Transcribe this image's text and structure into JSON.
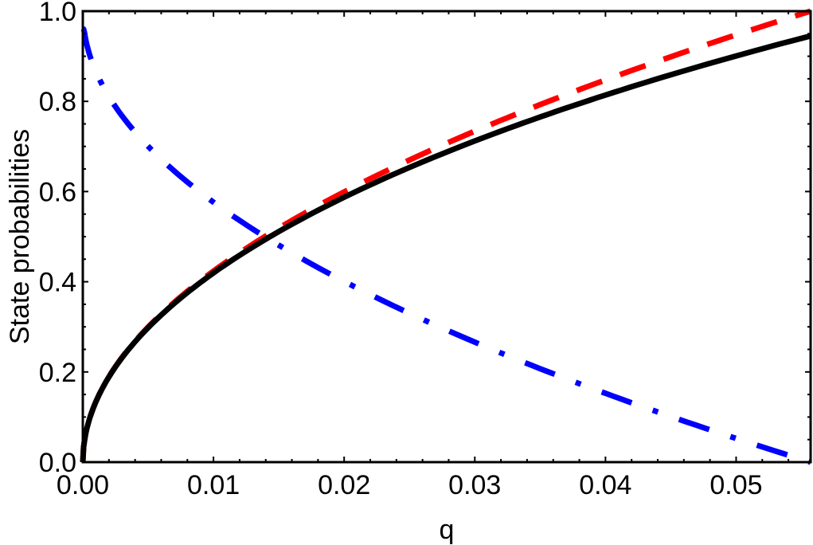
{
  "chart_data": {
    "type": "line",
    "title": "",
    "xlabel": "q",
    "ylabel": "State probabilities",
    "xlim": [
      0.0,
      0.0557
    ],
    "ylim": [
      0.0,
      1.0
    ],
    "grid": false,
    "legend": null,
    "x_ticks": [
      "0.00",
      "0.01",
      "0.02",
      "0.03",
      "0.04",
      "0.05"
    ],
    "y_ticks": [
      "0.0",
      "0.2",
      "0.4",
      "0.6",
      "0.8",
      "1.0"
    ],
    "x": [
      0.0,
      0.0005,
      0.001,
      0.002,
      0.004,
      0.006,
      0.008,
      0.01,
      0.013,
      0.015,
      0.02,
      0.025,
      0.03,
      0.035,
      0.04,
      0.045,
      0.05,
      0.0557
    ],
    "series": [
      {
        "name": "solid black",
        "color": "#000000",
        "style": "solid",
        "values": [
          0.0,
          0.095,
          0.134,
          0.189,
          0.268,
          0.327,
          0.377,
          0.421,
          0.477,
          0.512,
          0.589,
          0.655,
          0.714,
          0.766,
          0.814,
          0.859,
          0.901,
          0.945
        ]
      },
      {
        "name": "dashed red",
        "color": "#ff0000",
        "style": "dashed",
        "values": [
          0.0,
          0.095,
          0.134,
          0.189,
          0.268,
          0.328,
          0.379,
          0.424,
          0.483,
          0.519,
          0.599,
          0.67,
          0.734,
          0.793,
          0.847,
          0.899,
          0.947,
          1.0
        ]
      },
      {
        "name": "dash-dot blue",
        "color": "#0000ff",
        "style": "dashdot",
        "values": [
          0.96,
          0.905,
          0.866,
          0.811,
          0.732,
          0.672,
          0.621,
          0.576,
          0.517,
          0.481,
          0.401,
          0.33,
          0.266,
          0.207,
          0.153,
          0.101,
          0.053,
          0.0
        ]
      }
    ]
  }
}
